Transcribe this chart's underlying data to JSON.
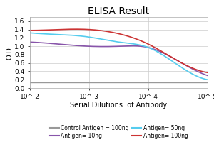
{
  "title": "ELISA Result",
  "ylabel": "O.D.",
  "xlabel": "Serial Dilutions  of Antibody",
  "ylim": [
    0,
    1.7
  ],
  "yticks": [
    0,
    0.2,
    0.4,
    0.6,
    0.8,
    1.0,
    1.2,
    1.4,
    1.6
  ],
  "xtick_positions": [
    1,
    2,
    3,
    4
  ],
  "xtick_labels": [
    "10^-2",
    "10^-3",
    "10^-4",
    "10^-5"
  ],
  "x_values": [
    1,
    1.5,
    2,
    2.5,
    3,
    3.5,
    4
  ],
  "series": [
    {
      "label": "Control Antigen = 100ng",
      "color": "#999999",
      "linewidth": 1.0,
      "y": [
        0.14,
        0.14,
        0.14,
        0.14,
        0.14,
        0.14,
        0.14
      ]
    },
    {
      "label": "Antigen= 10ng",
      "color": "#8855aa",
      "linewidth": 1.2,
      "y": [
        1.1,
        1.05,
        1.0,
        1.0,
        0.97,
        0.65,
        0.3
      ]
    },
    {
      "label": "Antigen= 50ng",
      "color": "#55ccee",
      "linewidth": 1.2,
      "y": [
        1.32,
        1.28,
        1.22,
        1.1,
        0.97,
        0.55,
        0.2
      ]
    },
    {
      "label": "Antigen= 100ng",
      "color": "#cc3333",
      "linewidth": 1.2,
      "y": [
        1.38,
        1.4,
        1.4,
        1.3,
        1.05,
        0.65,
        0.37
      ]
    }
  ],
  "legend_order": [
    {
      "label": "Control Antigen = 100ng",
      "color": "#999999"
    },
    {
      "label": "Antigen= 10ng",
      "color": "#8855aa"
    },
    {
      "label": "Antigen= 50ng",
      "color": "#55ccee"
    },
    {
      "label": "Antigen= 100ng",
      "color": "#cc3333"
    }
  ],
  "title_fontsize": 10,
  "axis_label_fontsize": 7,
  "tick_fontsize": 6.5,
  "legend_fontsize": 5.5,
  "grid_color": "#cccccc",
  "bg_color": "#ffffff"
}
